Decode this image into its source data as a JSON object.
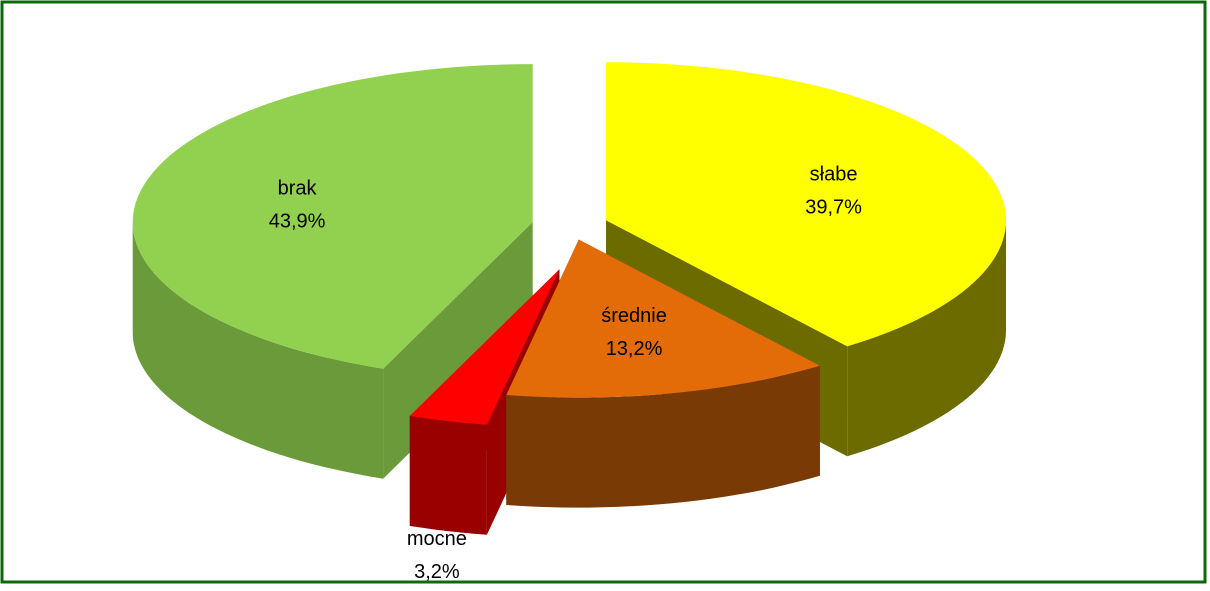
{
  "chart_data": {
    "type": "pie3d",
    "categories": [
      "słabe",
      "średnie",
      "mocne",
      "brak"
    ],
    "values": [
      39.7,
      13.2,
      3.2,
      43.9
    ],
    "value_labels": [
      "39,7%",
      "13,2%",
      "3,2%",
      "43,9%"
    ],
    "colors": [
      "#ffff00",
      "#e36c09",
      "#ff0000",
      "#92d050"
    ],
    "side_colors": [
      "#6b6b00",
      "#7a3a06",
      "#990000",
      "#6a9a3a"
    ]
  }
}
